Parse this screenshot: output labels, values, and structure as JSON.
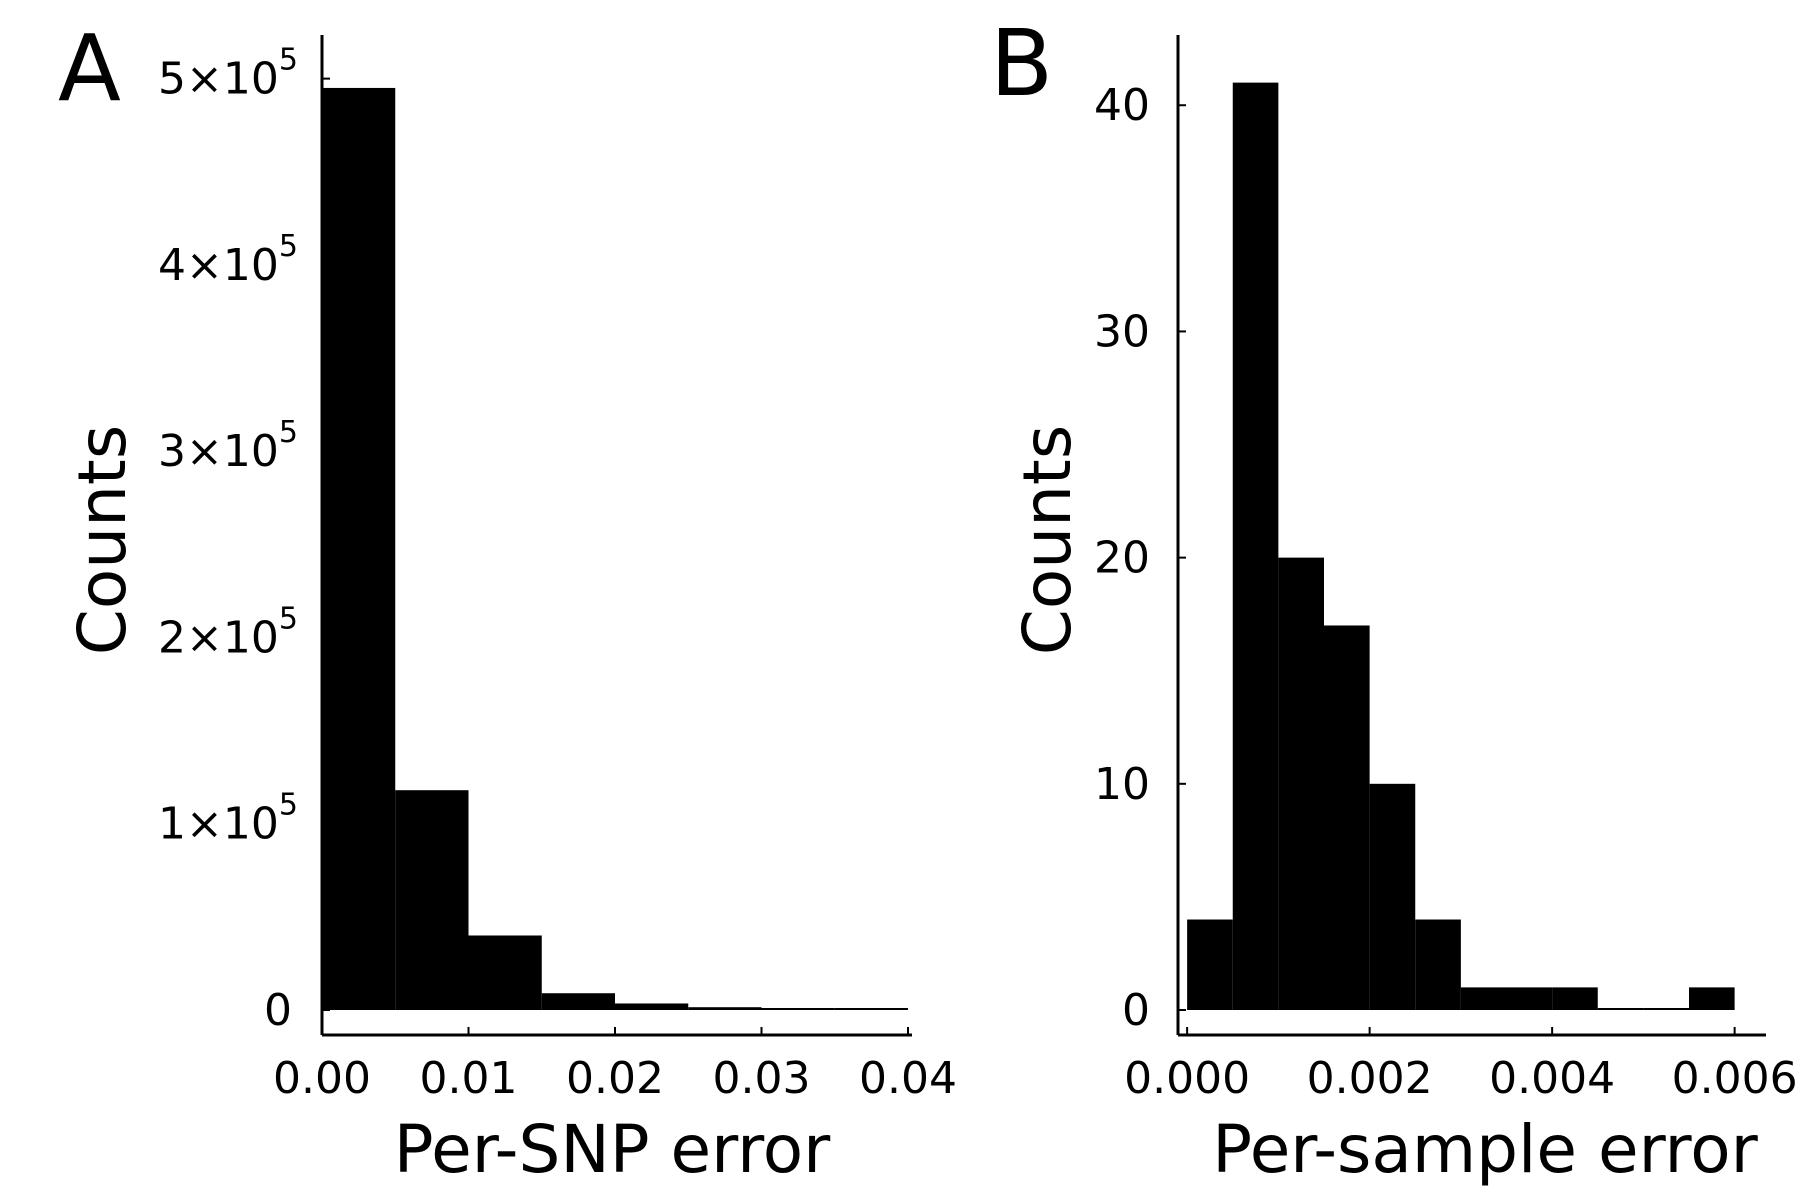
{
  "chart_data": [
    {
      "type": "bar",
      "panel_label": "A",
      "title": "",
      "xlabel": "Per-SNP error",
      "ylabel": "Counts",
      "bin_edges": [
        0.0,
        0.005,
        0.01,
        0.015,
        0.02,
        0.025,
        0.03,
        0.035,
        0.04
      ],
      "values": [
        495000,
        118000,
        40000,
        9000,
        3500,
        1500,
        600,
        200
      ],
      "xlim": [
        0,
        0.04
      ],
      "ylim": [
        0,
        510000
      ],
      "x_ticks": [
        "0.00",
        "0.01",
        "0.02",
        "0.03",
        "0.04"
      ],
      "x_tick_values": [
        0.0,
        0.01,
        0.02,
        0.03,
        0.04
      ],
      "y_ticks": [
        {
          "value": 0,
          "mantissa": "0",
          "exponent": ""
        },
        {
          "value": 100000,
          "mantissa": "1×10",
          "exponent": "5"
        },
        {
          "value": 200000,
          "mantissa": "2×10",
          "exponent": "5"
        },
        {
          "value": 300000,
          "mantissa": "3×10",
          "exponent": "5"
        },
        {
          "value": 400000,
          "mantissa": "4×10",
          "exponent": "5"
        },
        {
          "value": 500000,
          "mantissa": "5×10",
          "exponent": "5"
        }
      ],
      "grid": false,
      "bar_color": "#000000"
    },
    {
      "type": "bar",
      "panel_label": "B",
      "title": "",
      "xlabel": "Per-sample error",
      "ylabel": "Counts",
      "bin_edges": [
        0.0,
        0.0005,
        0.001,
        0.0015,
        0.002,
        0.0025,
        0.003,
        0.0035,
        0.004,
        0.0045,
        0.005,
        0.0055,
        0.006
      ],
      "values": [
        4,
        41,
        20,
        17,
        10,
        4,
        1,
        1,
        1,
        0,
        0,
        1
      ],
      "xlim": [
        -0.0001,
        0.0063
      ],
      "ylim": [
        0,
        42
      ],
      "x_ticks": [
        "0.000",
        "0.002",
        "0.004",
        "0.006"
      ],
      "x_tick_values": [
        0.0,
        0.002,
        0.004,
        0.006
      ],
      "y_ticks": [
        {
          "value": 0,
          "mantissa": "0",
          "exponent": ""
        },
        {
          "value": 10,
          "mantissa": "10",
          "exponent": ""
        },
        {
          "value": 20,
          "mantissa": "20",
          "exponent": ""
        },
        {
          "value": 30,
          "mantissa": "30",
          "exponent": ""
        },
        {
          "value": 40,
          "mantissa": "40",
          "exponent": ""
        }
      ],
      "grid": false,
      "bar_color": "#000000"
    }
  ]
}
